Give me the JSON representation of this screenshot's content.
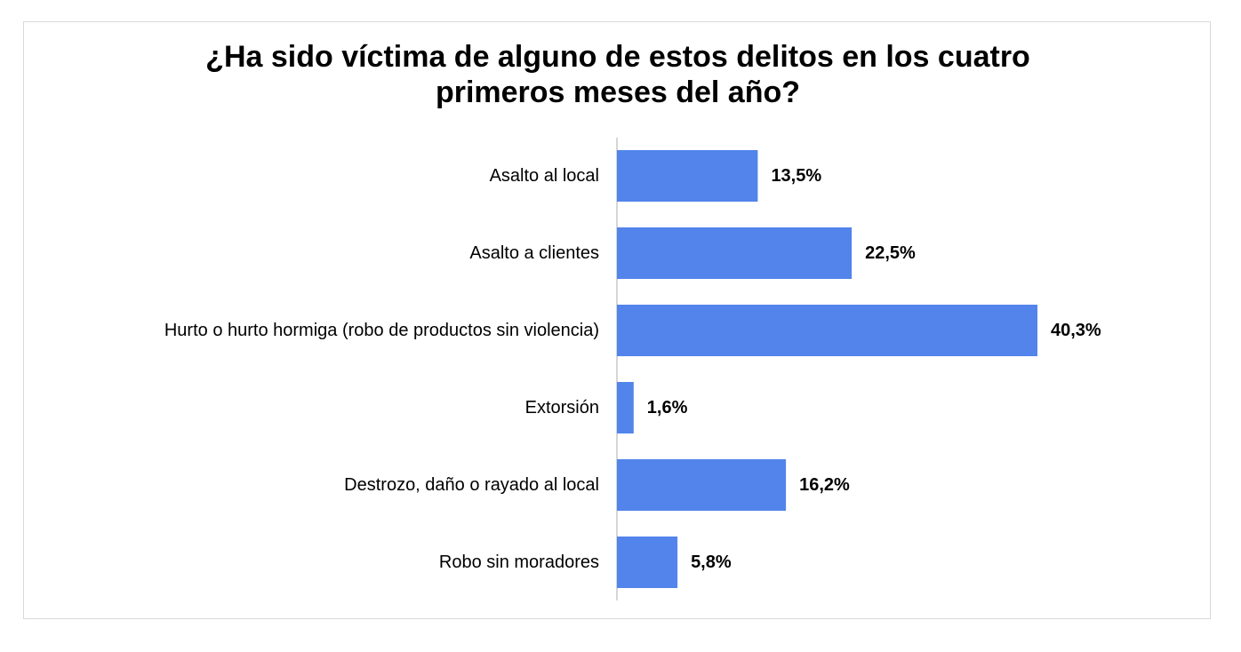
{
  "chart_data": {
    "type": "bar",
    "orientation": "horizontal",
    "title": "¿Ha sido víctima de alguno de estos delitos en los cuatro primeros meses del año?",
    "title_lines": [
      "¿Ha sido víctima de alguno de estos delitos en los cuatro",
      "primeros meses del año?"
    ],
    "categories": [
      "Asalto al local",
      "Asalto a clientes",
      "Hurto o hurto hormiga (robo de productos sin violencia)",
      "Extorsión",
      "Destrozo, daño o rayado al local",
      "Robo sin moradores"
    ],
    "values": [
      13.5,
      22.5,
      40.3,
      1.6,
      16.2,
      5.8
    ],
    "value_labels": [
      "13,5%",
      "22,5%",
      "40,3%",
      "1,6%",
      "16,2%",
      "5,8%"
    ],
    "xlim": [
      0,
      50
    ],
    "bar_color": "#5284eb",
    "axis_color": "#c8c8c8",
    "grid": false,
    "legend": "none"
  }
}
